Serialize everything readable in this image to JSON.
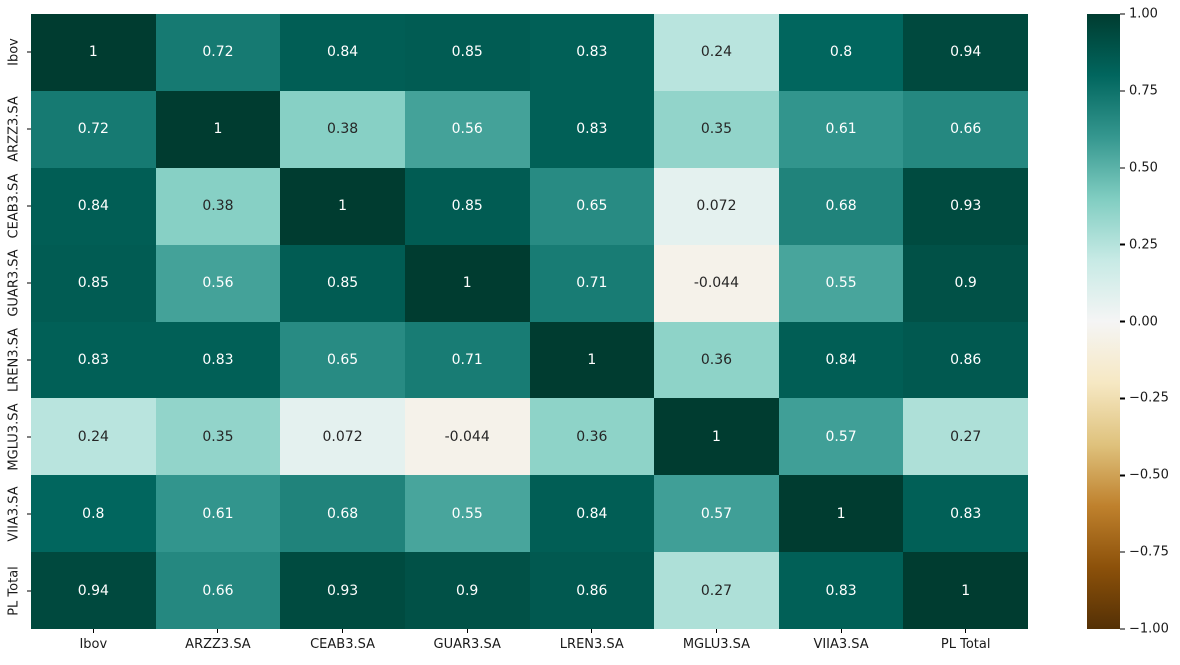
{
  "chart_data": {
    "type": "heatmap",
    "title": "",
    "labels": [
      "Ibov",
      "ARZZ3.SA",
      "CEAB3.SA",
      "GUAR3.SA",
      "LREN3.SA",
      "MGLU3.SA",
      "VIIA3.SA",
      "PL Total"
    ],
    "matrix": [
      [
        1,
        0.72,
        0.84,
        0.85,
        0.83,
        0.24,
        0.8,
        0.94
      ],
      [
        0.72,
        1,
        0.38,
        0.56,
        0.83,
        0.35,
        0.61,
        0.66
      ],
      [
        0.84,
        0.38,
        1,
        0.85,
        0.65,
        0.072,
        0.68,
        0.93
      ],
      [
        0.85,
        0.56,
        0.85,
        1,
        0.71,
        -0.044,
        0.55,
        0.9
      ],
      [
        0.83,
        0.83,
        0.65,
        0.71,
        1,
        0.36,
        0.84,
        0.86
      ],
      [
        0.24,
        0.35,
        0.072,
        -0.044,
        0.36,
        1,
        0.57,
        0.27
      ],
      [
        0.8,
        0.61,
        0.68,
        0.55,
        0.84,
        0.57,
        1,
        0.83
      ],
      [
        0.94,
        0.66,
        0.93,
        0.9,
        0.86,
        0.27,
        0.83,
        1
      ]
    ],
    "vmin": -1,
    "vmax": 1,
    "grid": false,
    "legend_position": "right-colorbar",
    "colormap": {
      "name": "BrBG",
      "anchors": [
        "#543005",
        "#8c510a",
        "#bf812d",
        "#dfc27d",
        "#f6e8c3",
        "#f5f5f5",
        "#c7eae5",
        "#80cdc1",
        "#35978f",
        "#01665e",
        "#003c30"
      ]
    },
    "annotation_text_colors": {
      "light_cells": "#262626",
      "dark_cells": "#ffffff"
    },
    "colorbar_ticks": [
      "1.00",
      "0.75",
      "0.50",
      "0.25",
      "0.00",
      "−0.25",
      "−0.50",
      "−0.75",
      "−1.00"
    ]
  }
}
